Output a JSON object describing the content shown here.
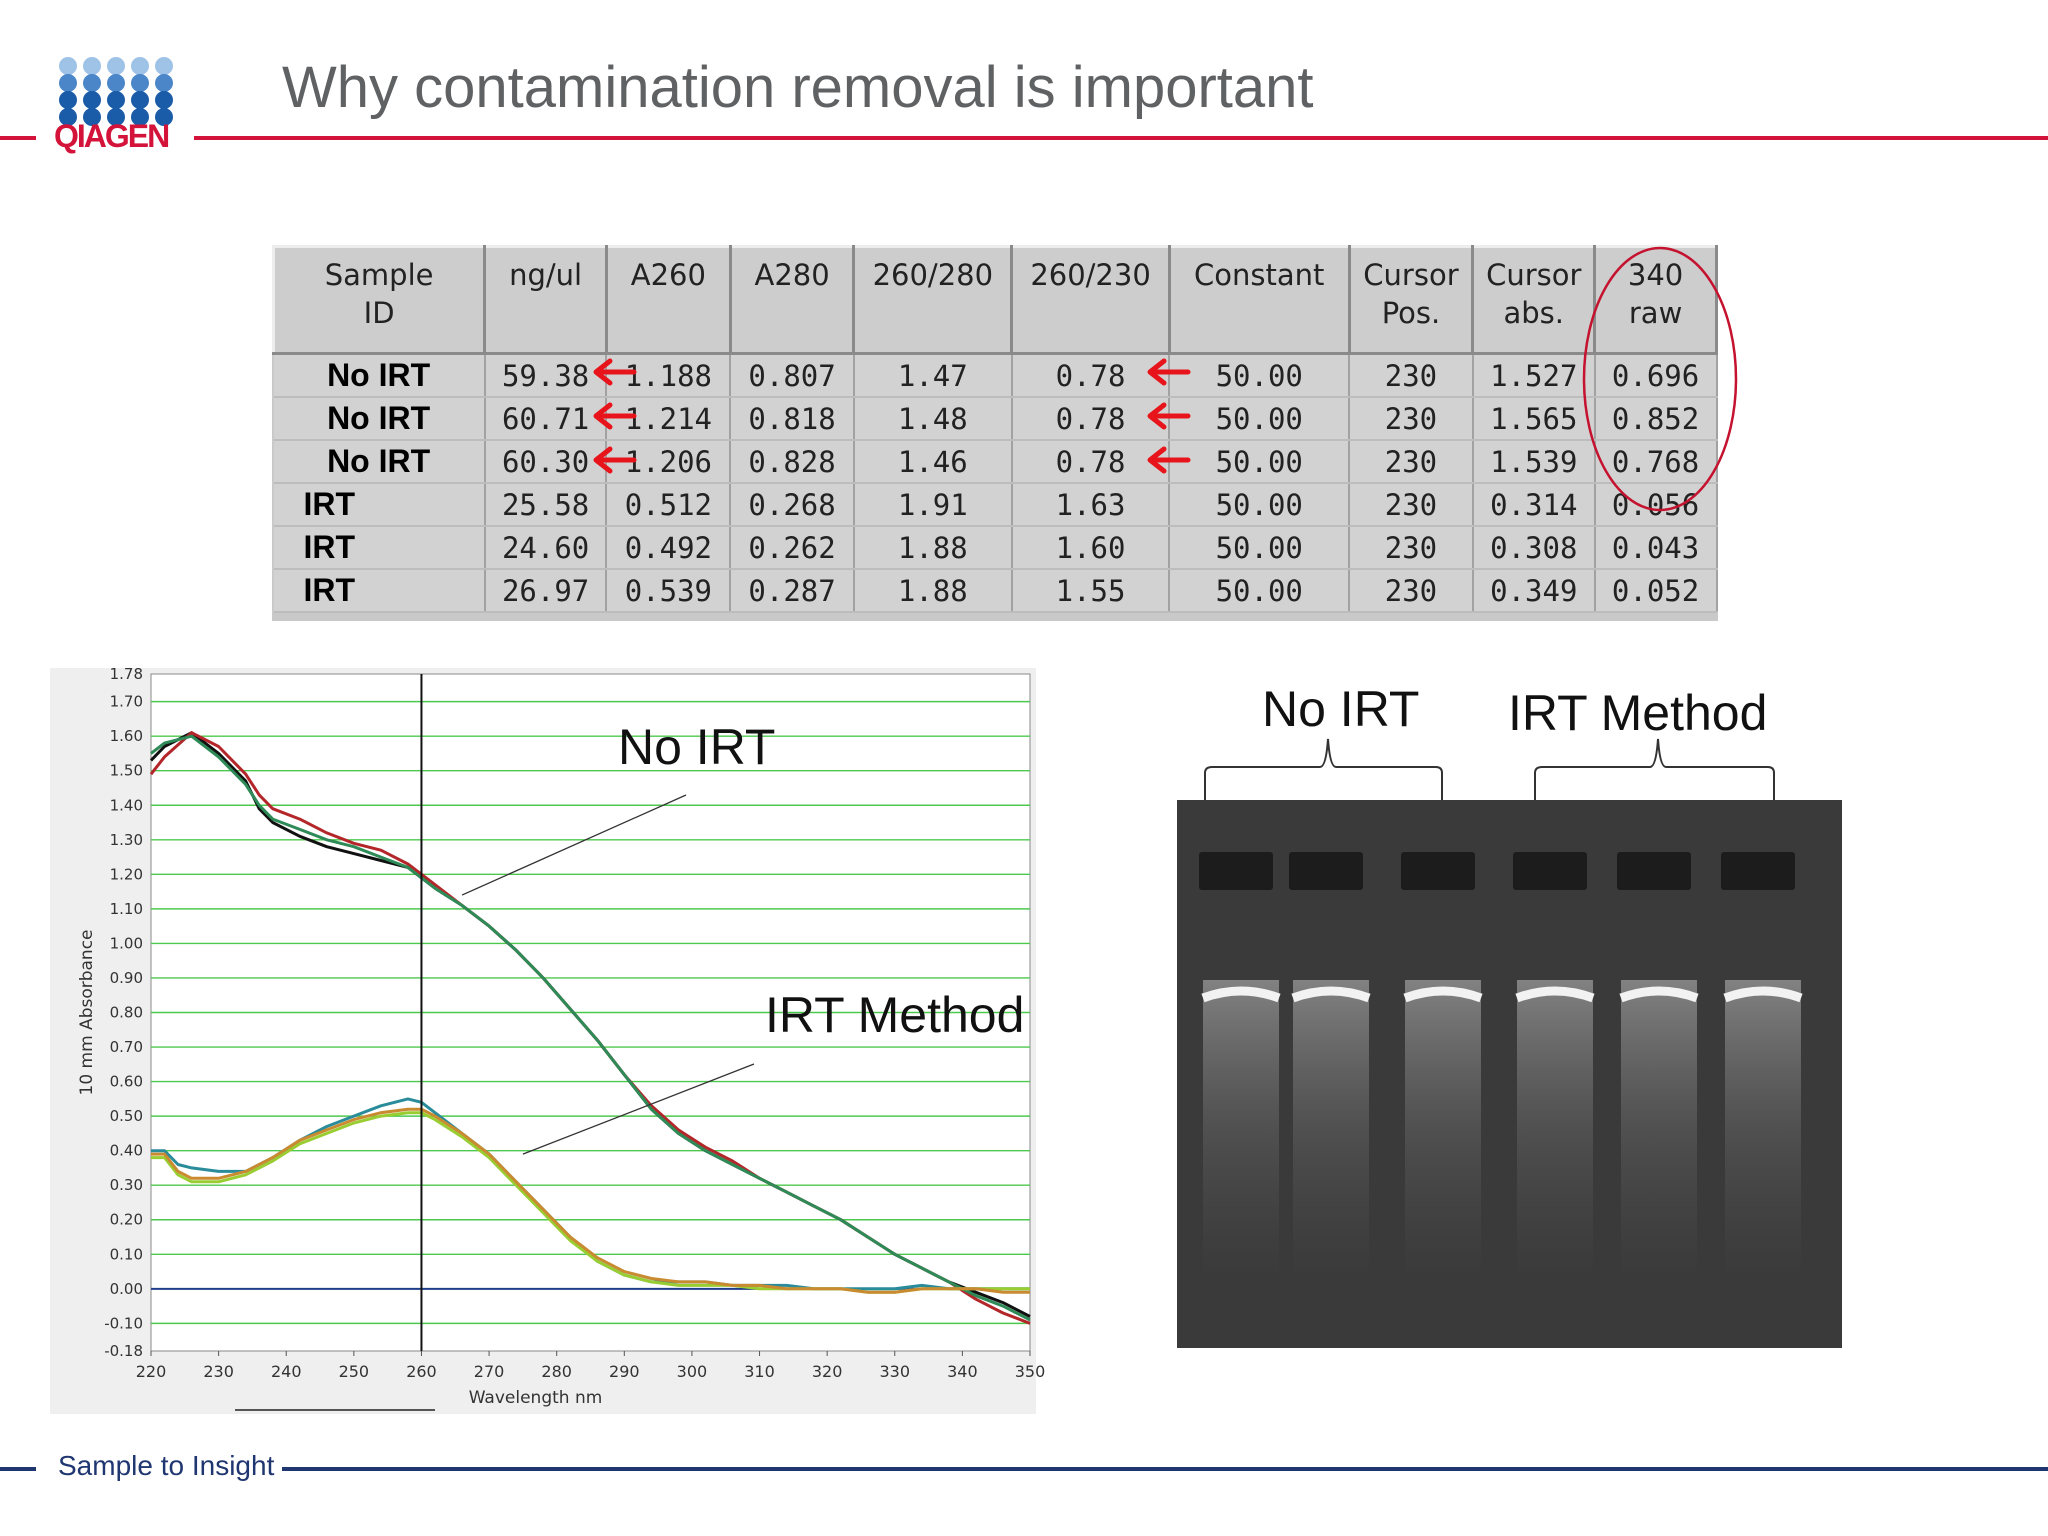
{
  "header": {
    "title": "Why contamination removal is important",
    "logo_text": "QIAGEN",
    "logo_dot_color": "#1a5ca8",
    "accent_color": "#d4133a"
  },
  "table": {
    "columns": [
      {
        "line1": "Sample",
        "line2": "ID"
      },
      {
        "line1": "ng/ul",
        "line2": ""
      },
      {
        "line1": "A260",
        "line2": ""
      },
      {
        "line1": "A280",
        "line2": ""
      },
      {
        "line1": "260/280",
        "line2": ""
      },
      {
        "line1": "260/230",
        "line2": ""
      },
      {
        "line1": "Constant",
        "line2": ""
      },
      {
        "line1": "Cursor",
        "line2": "Pos."
      },
      {
        "line1": "Cursor",
        "line2": "abs."
      },
      {
        "line1": "340",
        "line2": "raw"
      }
    ],
    "rows": [
      [
        "No IRT",
        "59.38",
        "1.188",
        "0.807",
        "1.47",
        "0.78",
        "50.00",
        "230",
        "1.527",
        "0.696"
      ],
      [
        "No IRT",
        "60.71",
        "1.214",
        "0.818",
        "1.48",
        "0.78",
        "50.00",
        "230",
        "1.565",
        "0.852"
      ],
      [
        "No IRT",
        "60.30",
        "1.206",
        "0.828",
        "1.46",
        "0.78",
        "50.00",
        "230",
        "1.539",
        "0.768"
      ],
      [
        "IRT",
        "25.58",
        "0.512",
        "0.268",
        "1.91",
        "1.63",
        "50.00",
        "230",
        "0.314",
        "0.056"
      ],
      [
        "IRT",
        "24.60",
        "0.492",
        "0.262",
        "1.88",
        "1.60",
        "50.00",
        "230",
        "0.308",
        "0.043"
      ],
      [
        "IRT",
        "26.97",
        "0.539",
        "0.287",
        "1.88",
        "1.55",
        "50.00",
        "230",
        "0.349",
        "0.052"
      ]
    ],
    "arrow_color": "#e8141b",
    "circle_color": "#c4122f"
  },
  "chart_data": {
    "type": "line",
    "title": "",
    "xlabel": "Wavelength nm",
    "ylabel": "10 mm Absorbance",
    "xlim": [
      220,
      350
    ],
    "ylim": [
      -0.18,
      1.78
    ],
    "xticks": [
      "220",
      "230",
      "240",
      "250",
      "260",
      "270",
      "280",
      "290",
      "300",
      "310",
      "320",
      "330",
      "340",
      "350"
    ],
    "yticks": [
      "1.78",
      "1.70",
      "1.60",
      "1.50",
      "1.40",
      "1.30",
      "1.20",
      "1.10",
      "1.00",
      "0.90",
      "0.80",
      "0.70",
      "0.60",
      "0.50",
      "0.40",
      "0.30",
      "0.20",
      "0.10",
      "0.00",
      "-0.10",
      "-0.18"
    ],
    "cursor_x": 260,
    "grid": true,
    "annotations": [
      {
        "text": "No IRT",
        "points_to_x": 266,
        "points_to_y": 1.14
      },
      {
        "text": "IRT Method",
        "points_to_x": 275,
        "points_to_y": 0.39
      }
    ],
    "series": [
      {
        "color": "#111111",
        "x": [
          220,
          222,
          226,
          230,
          234,
          236,
          238,
          242,
          246,
          250,
          254,
          258,
          260,
          262,
          266,
          270,
          274,
          278,
          282,
          286,
          290,
          294,
          298,
          302,
          306,
          310,
          314,
          318,
          322,
          326,
          330,
          334,
          338,
          342,
          346,
          350
        ],
        "y": [
          1.53,
          1.57,
          1.61,
          1.55,
          1.47,
          1.39,
          1.35,
          1.31,
          1.28,
          1.26,
          1.24,
          1.22,
          1.19,
          1.16,
          1.11,
          1.05,
          0.98,
          0.9,
          0.81,
          0.72,
          0.62,
          0.52,
          0.45,
          0.4,
          0.36,
          0.32,
          0.28,
          0.24,
          0.2,
          0.15,
          0.1,
          0.06,
          0.02,
          -0.01,
          -0.04,
          -0.08
        ]
      },
      {
        "color": "#b3262a",
        "x": [
          220,
          222,
          226,
          230,
          234,
          236,
          238,
          242,
          246,
          250,
          254,
          258,
          260,
          262,
          266,
          270,
          274,
          278,
          282,
          286,
          290,
          294,
          298,
          302,
          306,
          310,
          314,
          318,
          322,
          326,
          330,
          334,
          338,
          342,
          346,
          350
        ],
        "y": [
          1.49,
          1.54,
          1.61,
          1.57,
          1.49,
          1.43,
          1.39,
          1.36,
          1.32,
          1.29,
          1.27,
          1.23,
          1.2,
          1.17,
          1.11,
          1.05,
          0.98,
          0.9,
          0.81,
          0.72,
          0.62,
          0.53,
          0.46,
          0.41,
          0.37,
          0.32,
          0.28,
          0.24,
          0.2,
          0.15,
          0.1,
          0.06,
          0.02,
          -0.03,
          -0.07,
          -0.1
        ]
      },
      {
        "color": "#2e8b57",
        "x": [
          220,
          222,
          226,
          230,
          234,
          236,
          238,
          242,
          246,
          250,
          254,
          258,
          260,
          262,
          266,
          270,
          274,
          278,
          282,
          286,
          290,
          294,
          298,
          302,
          306,
          310,
          314,
          318,
          322,
          326,
          330,
          334,
          338,
          342,
          346,
          350
        ],
        "y": [
          1.55,
          1.58,
          1.6,
          1.54,
          1.46,
          1.4,
          1.36,
          1.33,
          1.3,
          1.28,
          1.25,
          1.22,
          1.19,
          1.16,
          1.11,
          1.05,
          0.98,
          0.9,
          0.81,
          0.72,
          0.62,
          0.52,
          0.45,
          0.4,
          0.36,
          0.32,
          0.28,
          0.24,
          0.2,
          0.15,
          0.1,
          0.06,
          0.02,
          -0.02,
          -0.05,
          -0.09
        ]
      },
      {
        "color": "#2a8c9a",
        "x": [
          220,
          222,
          224,
          226,
          230,
          234,
          238,
          242,
          246,
          250,
          254,
          258,
          260,
          262,
          266,
          270,
          274,
          278,
          282,
          286,
          290,
          294,
          298,
          302,
          306,
          310,
          314,
          318,
          322,
          326,
          330,
          334,
          338,
          342,
          346,
          350
        ],
        "y": [
          0.4,
          0.4,
          0.36,
          0.35,
          0.34,
          0.34,
          0.38,
          0.43,
          0.47,
          0.5,
          0.53,
          0.55,
          0.54,
          0.51,
          0.45,
          0.39,
          0.31,
          0.23,
          0.15,
          0.08,
          0.04,
          0.02,
          0.02,
          0.02,
          0.01,
          0.01,
          0.01,
          0.0,
          0.0,
          0.0,
          0.0,
          0.01,
          0.0,
          0.0,
          0.0,
          0.0
        ]
      },
      {
        "color": "#9acd32",
        "x": [
          220,
          222,
          224,
          226,
          230,
          234,
          238,
          242,
          246,
          250,
          254,
          258,
          260,
          262,
          266,
          270,
          274,
          278,
          282,
          286,
          290,
          294,
          298,
          302,
          306,
          310,
          314,
          318,
          322,
          326,
          330,
          334,
          338,
          342,
          346,
          350
        ],
        "y": [
          0.38,
          0.38,
          0.33,
          0.31,
          0.31,
          0.33,
          0.37,
          0.42,
          0.45,
          0.48,
          0.5,
          0.51,
          0.51,
          0.49,
          0.44,
          0.38,
          0.3,
          0.22,
          0.14,
          0.08,
          0.04,
          0.02,
          0.01,
          0.01,
          0.01,
          0.0,
          0.0,
          0.0,
          0.0,
          -0.01,
          -0.01,
          0.0,
          0.0,
          0.0,
          0.0,
          0.0
        ]
      },
      {
        "color": "#c98a30",
        "x": [
          220,
          222,
          224,
          226,
          230,
          234,
          238,
          242,
          246,
          250,
          254,
          258,
          260,
          262,
          266,
          270,
          274,
          278,
          282,
          286,
          290,
          294,
          298,
          302,
          306,
          310,
          314,
          318,
          322,
          326,
          330,
          334,
          338,
          342,
          346,
          350
        ],
        "y": [
          0.39,
          0.39,
          0.34,
          0.32,
          0.32,
          0.34,
          0.38,
          0.43,
          0.46,
          0.49,
          0.51,
          0.52,
          0.52,
          0.5,
          0.45,
          0.39,
          0.31,
          0.23,
          0.15,
          0.09,
          0.05,
          0.03,
          0.02,
          0.02,
          0.01,
          0.01,
          0.0,
          0.0,
          0.0,
          -0.01,
          -0.01,
          0.0,
          0.0,
          0.0,
          -0.01,
          -0.01
        ]
      }
    ]
  },
  "gel": {
    "label_no_irt": "No IRT",
    "label_irt": "IRT Method",
    "lane_count": 6
  },
  "footer": {
    "text": "Sample to Insight"
  }
}
